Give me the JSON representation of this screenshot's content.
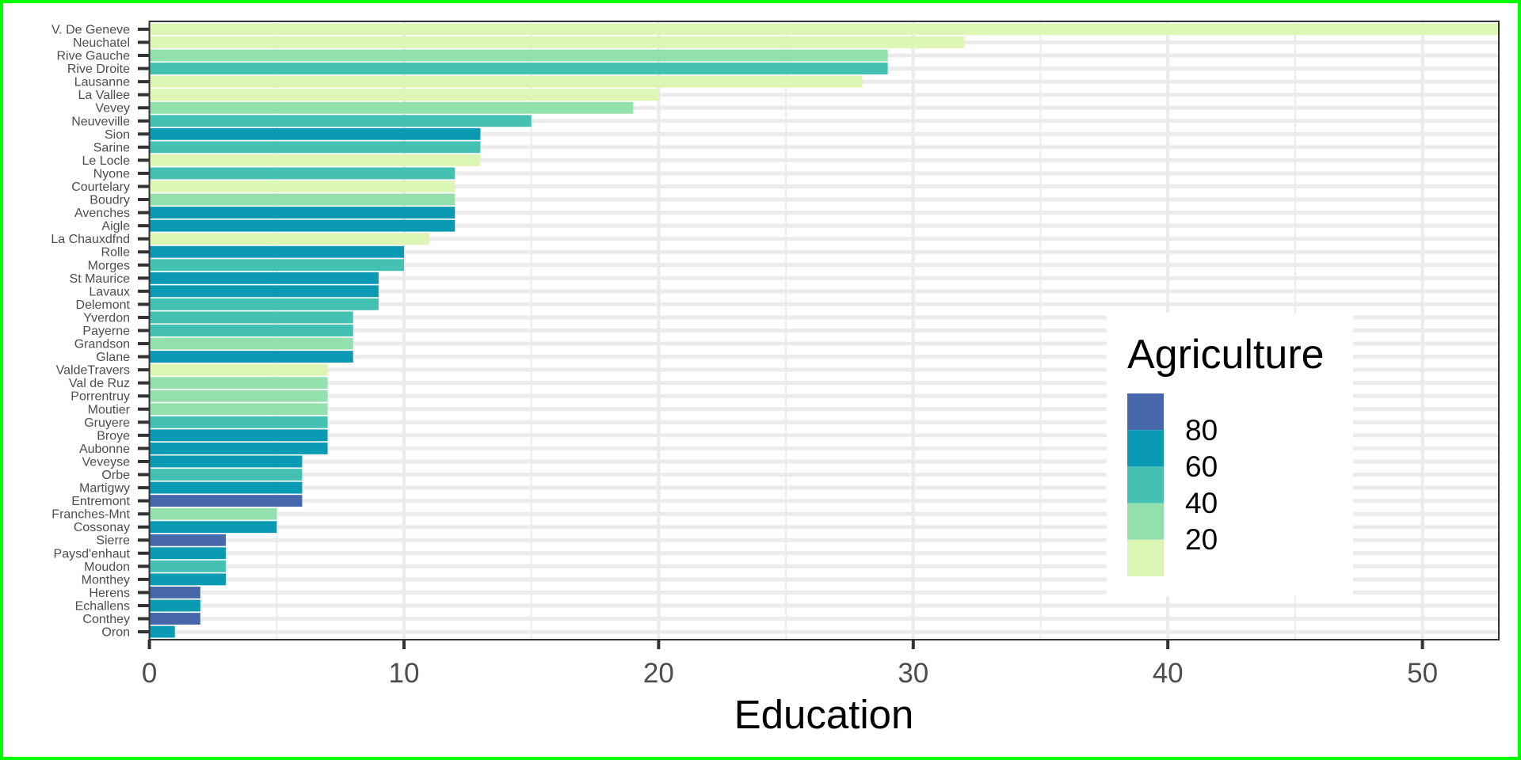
{
  "chart_data": {
    "type": "bar",
    "orientation": "horizontal",
    "xlabel": "Education",
    "ylabel": "",
    "xlim": [
      0,
      53
    ],
    "x_ticks": [
      0,
      10,
      20,
      30,
      40,
      50
    ],
    "grid": true,
    "legend": {
      "title": "Agriculture",
      "placement": "right-inside",
      "labels": [
        "80",
        "60",
        "40",
        "20"
      ],
      "bins": [
        {
          "range": "80+",
          "color": "#4668aa"
        },
        {
          "range": "60-80",
          "color": "#0a9ab4"
        },
        {
          "range": "40-60",
          "color": "#45c1b3"
        },
        {
          "range": "20-40",
          "color": "#93e0ad"
        },
        {
          "range": "0-20",
          "color": "#ddf5b5"
        }
      ]
    },
    "categories": [
      "V. De Geneve",
      "Neuchatel",
      "Rive Gauche",
      "Rive Droite",
      "Lausanne",
      "La Vallee",
      "Vevey",
      "Neuveville",
      "Sion",
      "Sarine",
      "Le Locle",
      "Nyone",
      "Courtelary",
      "Boudry",
      "Avenches",
      "Aigle",
      "La Chauxdfnd",
      "Rolle",
      "Morges",
      "St Maurice",
      "Lavaux",
      "Delemont",
      "Yverdon",
      "Payerne",
      "Grandson",
      "Glane",
      "ValdeTravers",
      "Val de Ruz",
      "Porrentruy",
      "Moutier",
      "Gruyere",
      "Broye",
      "Aubonne",
      "Veveyse",
      "Orbe",
      "Martigwy",
      "Entremont",
      "Franches-Mnt",
      "Cossonay",
      "Sierre",
      "Paysd'enhaut",
      "Moudon",
      "Monthey",
      "Herens",
      "Echallens",
      "Conthey",
      "Oron"
    ],
    "values": [
      53,
      32,
      29,
      29,
      28,
      20,
      19,
      15,
      13,
      13,
      13,
      12,
      12,
      12,
      12,
      12,
      11,
      10,
      10,
      9,
      9,
      9,
      8,
      8,
      8,
      8,
      7,
      7,
      7,
      7,
      7,
      7,
      7,
      6,
      6,
      6,
      6,
      5,
      5,
      3,
      3,
      3,
      3,
      2,
      2,
      2,
      1
    ],
    "agriculture_bin": [
      "0-20",
      "0-20",
      "20-40",
      "40-60",
      "0-20",
      "0-20",
      "20-40",
      "40-60",
      "60-80",
      "40-60",
      "0-20",
      "40-60",
      "0-20",
      "20-40",
      "60-80",
      "60-80",
      "0-20",
      "60-80",
      "40-60",
      "60-80",
      "60-80",
      "40-60",
      "40-60",
      "40-60",
      "20-40",
      "60-80",
      "0-20",
      "20-40",
      "20-40",
      "20-40",
      "40-60",
      "60-80",
      "60-80",
      "60-80",
      "40-60",
      "60-80",
      "80+",
      "20-40",
      "60-80",
      "80+",
      "60-80",
      "40-60",
      "60-80",
      "80+",
      "60-80",
      "80+",
      "60-80"
    ]
  }
}
